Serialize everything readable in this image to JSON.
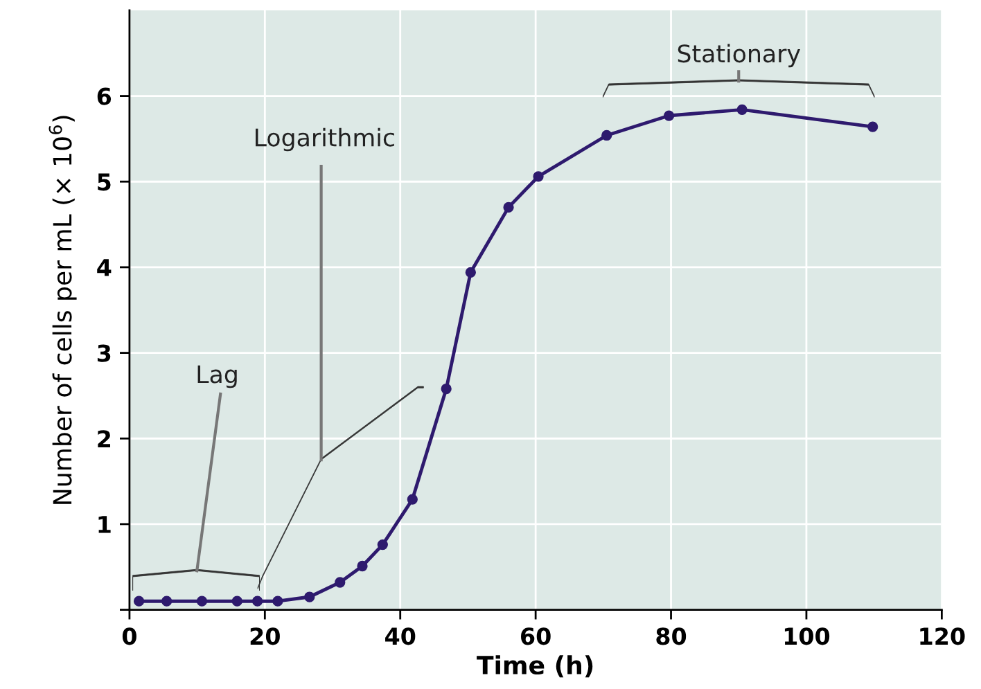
{
  "chart_data": {
    "type": "line",
    "xlabel": "Time (h)",
    "ylabel": "Number of cells per mL (× 10$^{6}$)",
    "x": [
      1.4,
      5.5,
      10.7,
      15.9,
      18.9,
      21.9,
      26.6,
      31.1,
      34.4,
      37.4,
      41.8,
      46.8,
      50.4,
      56.0,
      60.4,
      70.5,
      79.7,
      90.5,
      109.8
    ],
    "series": [
      {
        "color": "#2e1a6e",
        "values": [
          0.1,
          0.1,
          0.1,
          0.1,
          0.1,
          0.1,
          0.15,
          0.32,
          0.51,
          0.76,
          1.29,
          2.58,
          3.94,
          4.7,
          5.06,
          5.54,
          5.77,
          5.84,
          5.64
        ]
      }
    ],
    "marker": "circle",
    "line_style": "solid",
    "grid": true,
    "xlim": [
      0,
      120
    ],
    "xticks": [
      0,
      20,
      40,
      60,
      80,
      100,
      120
    ],
    "ylim": [
      0,
      7
    ],
    "yticks": [
      {
        "value": 0,
        "label": null
      },
      1,
      2,
      3,
      4,
      5,
      6
    ],
    "annotations": [
      "Lag",
      "Logarithmic",
      "Stationary"
    ]
  }
}
